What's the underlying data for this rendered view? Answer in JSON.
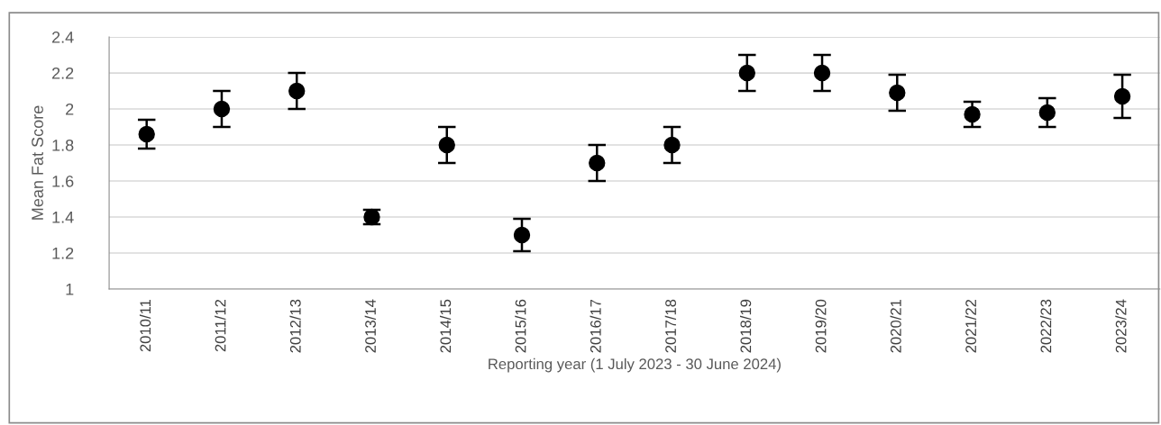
{
  "chart_data": {
    "type": "scatter",
    "xlabel": "Reporting year (1 July 2023 - 30 June 2024)",
    "ylabel": "Mean Fat Score",
    "categories": [
      "2010/11",
      "2011/12",
      "2012/13",
      "2013/14",
      "2014/15",
      "2015/16",
      "2016/17",
      "2017/18",
      "2018/19",
      "2019/20",
      "2020/21",
      "2021/22",
      "2022/23",
      "2023/24"
    ],
    "series": [
      {
        "color": "#000000",
        "values": [
          1.86,
          2.0,
          2.1,
          1.4,
          1.8,
          1.3,
          1.7,
          1.8,
          2.2,
          2.2,
          2.09,
          1.97,
          1.98,
          2.07
        ],
        "errors": [
          [
            1.78,
            1.94
          ],
          [
            1.9,
            2.1
          ],
          [
            2.0,
            2.2
          ],
          [
            1.36,
            1.44
          ],
          [
            1.7,
            1.9
          ],
          [
            1.21,
            1.39
          ],
          [
            1.6,
            1.8
          ],
          [
            1.7,
            1.9
          ],
          [
            2.1,
            2.3
          ],
          [
            2.1,
            2.3
          ],
          [
            1.99,
            2.19
          ],
          [
            1.9,
            2.04
          ],
          [
            1.9,
            2.06
          ],
          [
            1.95,
            2.19
          ]
        ]
      }
    ],
    "ylim": [
      1,
      2.4
    ],
    "yticks": [
      1,
      1.2,
      1.4,
      1.6,
      1.8,
      2,
      2.2,
      2.4
    ],
    "grid": "y",
    "marker": "circle"
  }
}
